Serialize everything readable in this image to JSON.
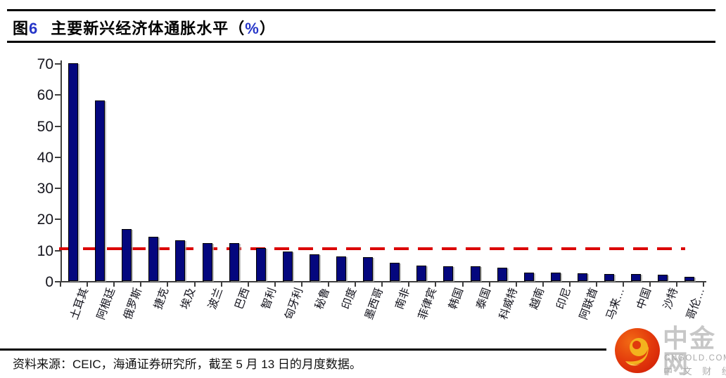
{
  "header": {
    "figure_label": "图",
    "figure_number": "6",
    "title_text": "主要新兴经济体通胀水平",
    "paren_open": "（",
    "percent_sign": "%",
    "paren_close": "）"
  },
  "colors": {
    "accent_blue": "#2535c8",
    "bar_navy": "#04077e",
    "reference_red": "#db0000",
    "axis_gray": "#3d3d3d"
  },
  "chart_data": {
    "type": "bar",
    "title": "图6 主要新兴经济体通胀水平（%）",
    "categories": [
      "土耳其",
      "阿根廷",
      "俄罗斯",
      "捷克",
      "埃及",
      "波兰",
      "巴西",
      "智利",
      "匈牙利",
      "秘鲁",
      "印度",
      "墨西哥",
      "南非",
      "菲律宾",
      "韩国",
      "泰国",
      "科威特",
      "越南",
      "印尼",
      "阿联酋",
      "马来…",
      "中国",
      "沙特",
      "哥伦…"
    ],
    "values": [
      70,
      58,
      16.7,
      14.2,
      13.1,
      12.3,
      12.1,
      10.5,
      9.4,
      8.5,
      7.8,
      7.6,
      5.9,
      4.9,
      4.8,
      4.7,
      4.4,
      2.7,
      2.6,
      2.4,
      2.3,
      2.2,
      2.0,
      1.3
    ],
    "ylabel": "",
    "xlabel": "",
    "ylim": [
      0,
      70
    ],
    "yticks": [
      0,
      10,
      20,
      30,
      40,
      50,
      60,
      70
    ],
    "grid": false,
    "legend": null,
    "reference_line": {
      "value": 10.3,
      "style": "dashed",
      "color": "#db0000"
    }
  },
  "footer": {
    "source_text": "资料来源：CEIC，海通证券研究所，截至 5 月 13 日的月度数据。"
  },
  "logo": {
    "name": "中金网",
    "domain": "CNGOLD.COM.CN",
    "tagline": "中 文 财 经 新 媒 体"
  }
}
